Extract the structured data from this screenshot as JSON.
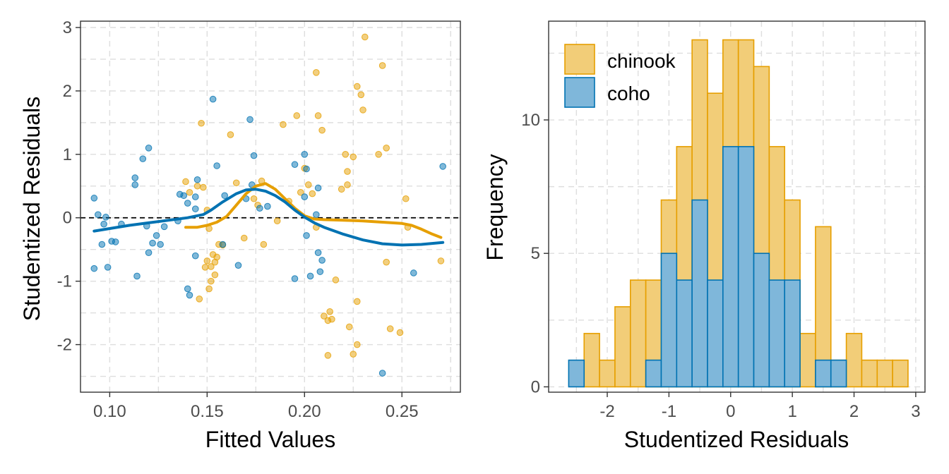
{
  "colors": {
    "chinook": "#E69F00",
    "coho": "#0072B2",
    "chinook_fill": "#F2CD78",
    "coho_fill": "#7FB7DA"
  },
  "chart_data": [
    {
      "type": "scatter",
      "xlabel": "Fitted Values",
      "ylabel": "Studentized Residuals",
      "xlim": [
        0.085,
        0.28
      ],
      "ylim": [
        -2.75,
        3.1
      ],
      "x_ticks": [
        0.1,
        0.15,
        0.2,
        0.25
      ],
      "x_tick_labels": [
        "0.10",
        "0.15",
        "0.20",
        "0.25"
      ],
      "y_ticks": [
        -2,
        -1,
        0,
        1,
        2,
        3
      ],
      "y_tick_labels": [
        "-2",
        "-1",
        "0",
        "1",
        "2",
        "3"
      ],
      "grid": true,
      "reference_line": {
        "y": 0,
        "style": "dashed"
      },
      "series": [
        {
          "name": "chinook",
          "color_key": "chinook",
          "points": [
            [
              0.139,
              0.57
            ],
            [
              0.141,
              0.4
            ],
            [
              0.145,
              0.5
            ],
            [
              0.147,
              1.49
            ],
            [
              0.148,
              0.48
            ],
            [
              0.15,
              0.12
            ],
            [
              0.151,
              -0.17
            ],
            [
              0.152,
              -0.77
            ],
            [
              0.153,
              -0.58
            ],
            [
              0.154,
              -0.7
            ],
            [
              0.155,
              -0.62
            ],
            [
              0.156,
              -0.42
            ],
            [
              0.158,
              -0.43
            ],
            [
              0.15,
              -0.68
            ],
            [
              0.149,
              -0.78
            ],
            [
              0.152,
              -1.0
            ],
            [
              0.146,
              -1.28
            ],
            [
              0.151,
              -1.12
            ],
            [
              0.154,
              -0.9
            ],
            [
              0.162,
              1.31
            ],
            [
              0.165,
              0.55
            ],
            [
              0.169,
              -0.32
            ],
            [
              0.174,
              0.3
            ],
            [
              0.176,
              0.2
            ],
            [
              0.178,
              0.58
            ],
            [
              0.179,
              -0.42
            ],
            [
              0.186,
              -0.05
            ],
            [
              0.189,
              1.47
            ],
            [
              0.192,
              0.26
            ],
            [
              0.196,
              1.61
            ],
            [
              0.198,
              0.4
            ],
            [
              0.2,
              0.78
            ],
            [
              0.202,
              0.52
            ],
            [
              0.206,
              -0.15
            ],
            [
              0.204,
              0.38
            ],
            [
              0.206,
              2.29
            ],
            [
              0.207,
              1.61
            ],
            [
              0.209,
              1.38
            ],
            [
              0.21,
              -1.55
            ],
            [
              0.212,
              -1.62
            ],
            [
              0.212,
              -2.17
            ],
            [
              0.213,
              -1.48
            ],
            [
              0.214,
              -1.6
            ],
            [
              0.216,
              -0.98
            ],
            [
              0.219,
              0.45
            ],
            [
              0.221,
              1.0
            ],
            [
              0.222,
              0.52
            ],
            [
              0.222,
              0.73
            ],
            [
              0.223,
              -1.72
            ],
            [
              0.225,
              0.96
            ],
            [
              0.225,
              -2.15
            ],
            [
              0.227,
              2.07
            ],
            [
              0.227,
              -1.32
            ],
            [
              0.227,
              -2.0
            ],
            [
              0.229,
              1.94
            ],
            [
              0.23,
              1.7
            ],
            [
              0.231,
              2.85
            ],
            [
              0.238,
              1.0
            ],
            [
              0.24,
              2.4
            ],
            [
              0.242,
              1.1
            ],
            [
              0.242,
              -0.7
            ],
            [
              0.244,
              -1.75
            ],
            [
              0.249,
              -1.81
            ],
            [
              0.252,
              0.3
            ],
            [
              0.253,
              -0.15
            ],
            [
              0.27,
              -0.68
            ]
          ],
          "smooth": [
            [
              0.139,
              -0.15
            ],
            [
              0.145,
              -0.15
            ],
            [
              0.15,
              -0.12
            ],
            [
              0.155,
              -0.07
            ],
            [
              0.16,
              0.02
            ],
            [
              0.165,
              0.2
            ],
            [
              0.17,
              0.38
            ],
            [
              0.175,
              0.5
            ],
            [
              0.18,
              0.54
            ],
            [
              0.185,
              0.45
            ],
            [
              0.19,
              0.3
            ],
            [
              0.195,
              0.15
            ],
            [
              0.2,
              0.03
            ],
            [
              0.205,
              -0.02
            ],
            [
              0.21,
              -0.03
            ],
            [
              0.22,
              -0.04
            ],
            [
              0.23,
              -0.05
            ],
            [
              0.24,
              -0.07
            ],
            [
              0.25,
              -0.09
            ],
            [
              0.255,
              -0.12
            ],
            [
              0.26,
              -0.18
            ],
            [
              0.265,
              -0.25
            ],
            [
              0.27,
              -0.31
            ]
          ]
        },
        {
          "name": "coho",
          "color_key": "coho",
          "points": [
            [
              0.092,
              0.31
            ],
            [
              0.092,
              -0.8
            ],
            [
              0.094,
              0.05
            ],
            [
              0.096,
              -0.42
            ],
            [
              0.097,
              -0.1
            ],
            [
              0.098,
              0.01
            ],
            [
              0.099,
              -0.78
            ],
            [
              0.101,
              -0.37
            ],
            [
              0.103,
              -0.38
            ],
            [
              0.106,
              -0.1
            ],
            [
              0.113,
              0.63
            ],
            [
              0.113,
              0.52
            ],
            [
              0.114,
              -0.92
            ],
            [
              0.117,
              0.93
            ],
            [
              0.119,
              -0.13
            ],
            [
              0.12,
              1.1
            ],
            [
              0.12,
              -0.55
            ],
            [
              0.122,
              -0.4
            ],
            [
              0.124,
              -0.28
            ],
            [
              0.126,
              -0.42
            ],
            [
              0.128,
              -0.14
            ],
            [
              0.135,
              -0.05
            ],
            [
              0.136,
              0.37
            ],
            [
              0.138,
              0.35
            ],
            [
              0.14,
              0.23
            ],
            [
              0.14,
              -1.12
            ],
            [
              0.141,
              -1.22
            ],
            [
              0.144,
              0.33
            ],
            [
              0.144,
              0.14
            ],
            [
              0.144,
              -0.6
            ],
            [
              0.145,
              0.6
            ],
            [
              0.153,
              1.87
            ],
            [
              0.155,
              0.82
            ],
            [
              0.158,
              -0.42
            ],
            [
              0.159,
              0.35
            ],
            [
              0.166,
              -0.75
            ],
            [
              0.17,
              0.3
            ],
            [
              0.172,
              1.55
            ],
            [
              0.173,
              0.52
            ],
            [
              0.174,
              0.98
            ],
            [
              0.177,
              0.15
            ],
            [
              0.181,
              0.18
            ],
            [
              0.195,
              0.84
            ],
            [
              0.195,
              -0.96
            ],
            [
              0.2,
              1.0
            ],
            [
              0.2,
              0.33
            ],
            [
              0.201,
              0.77
            ],
            [
              0.201,
              -0.28
            ],
            [
              0.203,
              -0.92
            ],
            [
              0.206,
              0.05
            ],
            [
              0.207,
              0.47
            ],
            [
              0.207,
              -0.55
            ],
            [
              0.208,
              -0.85
            ],
            [
              0.209,
              -0.67
            ],
            [
              0.24,
              -2.45
            ],
            [
              0.256,
              -0.87
            ],
            [
              0.271,
              0.81
            ]
          ],
          "smooth": [
            [
              0.092,
              -0.21
            ],
            [
              0.1,
              -0.17
            ],
            [
              0.11,
              -0.12
            ],
            [
              0.12,
              -0.08
            ],
            [
              0.13,
              -0.04
            ],
            [
              0.14,
              0.0
            ],
            [
              0.148,
              0.05
            ],
            [
              0.152,
              0.12
            ],
            [
              0.158,
              0.25
            ],
            [
              0.165,
              0.38
            ],
            [
              0.17,
              0.44
            ],
            [
              0.175,
              0.45
            ],
            [
              0.18,
              0.42
            ],
            [
              0.185,
              0.35
            ],
            [
              0.19,
              0.25
            ],
            [
              0.195,
              0.12
            ],
            [
              0.2,
              0.01
            ],
            [
              0.205,
              -0.08
            ],
            [
              0.21,
              -0.15
            ],
            [
              0.22,
              -0.26
            ],
            [
              0.23,
              -0.35
            ],
            [
              0.24,
              -0.41
            ],
            [
              0.25,
              -0.43
            ],
            [
              0.26,
              -0.42
            ],
            [
              0.271,
              -0.39
            ]
          ]
        }
      ]
    },
    {
      "type": "bar",
      "subtype": "histogram",
      "xlabel": "Studentized Residuals",
      "ylabel": "Frequency",
      "xlim": [
        -2.95,
        3.15
      ],
      "ylim": [
        -0.2,
        13.7
      ],
      "x_ticks": [
        -2,
        -1,
        0,
        1,
        2,
        3
      ],
      "x_tick_labels": [
        "-2",
        "-1",
        "0",
        "1",
        "2",
        "3"
      ],
      "y_ticks": [
        0,
        5,
        10
      ],
      "y_tick_labels": [
        "0",
        "5",
        "10"
      ],
      "grid": true,
      "legend_position": "top-left",
      "bins": [
        -2.625,
        -2.375,
        -2.125,
        -1.875,
        -1.625,
        -1.375,
        -1.125,
        -0.875,
        -0.625,
        -0.375,
        -0.125,
        0.125,
        0.375,
        0.625,
        0.875,
        1.125,
        1.375,
        1.625,
        1.875,
        2.125,
        2.375,
        2.625,
        2.875
      ],
      "series": [
        {
          "name": "chinook",
          "color_key": "chinook",
          "fill_key": "chinook_fill",
          "counts": [
            0,
            2,
            1,
            3,
            4,
            4,
            7,
            9,
            13,
            11,
            13,
            13,
            12,
            9,
            7,
            2,
            6,
            1,
            2,
            1,
            1,
            1
          ]
        },
        {
          "name": "coho",
          "color_key": "coho",
          "fill_key": "coho_fill",
          "counts": [
            1,
            0,
            0,
            0,
            0,
            1,
            5,
            4,
            7,
            4,
            9,
            9,
            5,
            4,
            4,
            0,
            1,
            1,
            0,
            0,
            0,
            0
          ]
        }
      ]
    }
  ]
}
